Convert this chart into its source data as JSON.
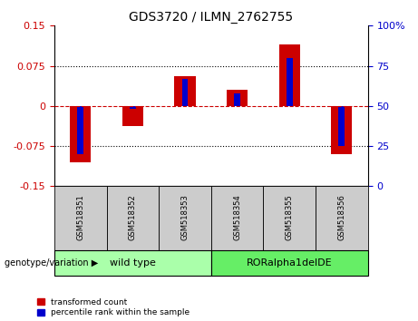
{
  "title": "GDS3720 / ILMN_2762755",
  "samples": [
    "GSM518351",
    "GSM518352",
    "GSM518353",
    "GSM518354",
    "GSM518355",
    "GSM518356"
  ],
  "red_values": [
    -0.105,
    -0.038,
    0.055,
    0.03,
    0.115,
    -0.09
  ],
  "blue_values_pct": [
    20,
    48,
    67,
    58,
    80,
    25
  ],
  "ylim_left": [
    -0.15,
    0.15
  ],
  "ylim_right": [
    0,
    100
  ],
  "yticks_left": [
    -0.15,
    -0.075,
    0,
    0.075,
    0.15
  ],
  "yticks_right": [
    0,
    25,
    50,
    75,
    100
  ],
  "ytick_labels_left": [
    "-0.15",
    "-0.075",
    "0",
    "0.075",
    "0.15"
  ],
  "ytick_labels_right": [
    "0",
    "25",
    "50",
    "75",
    "100%"
  ],
  "red_color": "#CC0000",
  "blue_color": "#0000CC",
  "bar_width": 0.4,
  "blue_bar_width": 0.12,
  "legend_red": "transformed count",
  "legend_blue": "percentile rank within the sample",
  "genotype_label": "genotype/variation",
  "group1_label": "wild type",
  "group2_label": "RORalpha1delDE",
  "group1_color": "#aaffaa",
  "group2_color": "#66ee66",
  "sample_box_color": "#cccccc"
}
